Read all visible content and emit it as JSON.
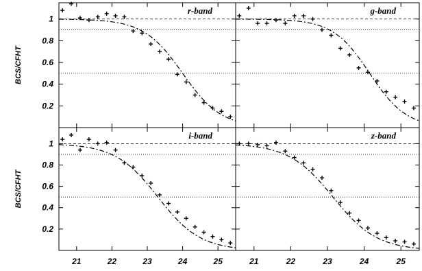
{
  "chart_data": [
    {
      "type": "scatter",
      "title": "r-band",
      "ylabel": "BCS/CFHT",
      "xlim": [
        20.5,
        25.5
      ],
      "ylim": [
        0,
        1.15
      ],
      "xticks": [
        "21",
        "22",
        "23",
        "24",
        "25"
      ],
      "yticks": [
        "0.2",
        "0.4",
        "0.6",
        "0.8",
        "1"
      ],
      "reference_lines": [
        1.0,
        0.9,
        0.5
      ],
      "model_curve": {
        "style": "dash-dot",
        "m50": 24.0,
        "width": 0.55
      },
      "points": [
        [
          20.6,
          1.08
        ],
        [
          20.85,
          1.14
        ],
        [
          21.1,
          1.01
        ],
        [
          21.35,
          0.99
        ],
        [
          21.6,
          1.02
        ],
        [
          21.85,
          1.05
        ],
        [
          22.1,
          1.03
        ],
        [
          22.35,
          1.02
        ],
        [
          22.6,
          0.89
        ],
        [
          22.85,
          0.87
        ],
        [
          23.1,
          0.77
        ],
        [
          23.35,
          0.7
        ],
        [
          23.6,
          0.63
        ],
        [
          23.85,
          0.49
        ],
        [
          24.1,
          0.42
        ],
        [
          24.35,
          0.3
        ],
        [
          24.6,
          0.23
        ],
        [
          24.85,
          0.18
        ],
        [
          25.1,
          0.15
        ],
        [
          25.35,
          0.1
        ]
      ]
    },
    {
      "type": "scatter",
      "title": "g-band",
      "ylabel": "",
      "xlim": [
        20.5,
        25.5
      ],
      "ylim": [
        0,
        1.15
      ],
      "xticks": [
        "21",
        "22",
        "23",
        "24",
        "25"
      ],
      "yticks": [
        "0.2",
        "0.4",
        "0.6",
        "0.8",
        "1"
      ],
      "reference_lines": [
        1.0,
        0.9,
        0.5
      ],
      "model_curve": {
        "style": "dash-dot",
        "m50": 24.15,
        "width": 0.5
      },
      "points": [
        [
          20.6,
          1.03
        ],
        [
          20.85,
          1.1
        ],
        [
          21.1,
          0.96
        ],
        [
          21.35,
          0.96
        ],
        [
          21.6,
          0.99
        ],
        [
          21.85,
          0.96
        ],
        [
          22.1,
          1.03
        ],
        [
          22.35,
          1.03
        ],
        [
          22.6,
          1.0
        ],
        [
          22.85,
          0.9
        ],
        [
          23.1,
          0.85
        ],
        [
          23.35,
          0.73
        ],
        [
          23.6,
          0.67
        ],
        [
          23.85,
          0.55
        ],
        [
          24.1,
          0.51
        ],
        [
          24.35,
          0.43
        ],
        [
          24.6,
          0.33
        ],
        [
          24.85,
          0.28
        ],
        [
          25.1,
          0.24
        ],
        [
          25.35,
          0.18
        ]
      ]
    },
    {
      "type": "scatter",
      "title": "i-band",
      "ylabel": "BCS/CFHT",
      "xlim": [
        20.5,
        25.5
      ],
      "ylim": [
        0,
        1.15
      ],
      "xticks": [
        "21",
        "22",
        "23",
        "24",
        "25"
      ],
      "yticks": [
        "0.2",
        "0.4",
        "0.6",
        "0.8",
        "1"
      ],
      "reference_lines": [
        1.0,
        0.9,
        0.5
      ],
      "model_curve": {
        "style": "dash-dot",
        "m50": 23.3,
        "width": 0.6
      },
      "points": [
        [
          20.6,
          1.04
        ],
        [
          20.85,
          1.08
        ],
        [
          21.1,
          0.94
        ],
        [
          21.35,
          1.04
        ],
        [
          21.6,
          1.0
        ],
        [
          21.85,
          1.01
        ],
        [
          22.1,
          0.94
        ],
        [
          22.35,
          0.82
        ],
        [
          22.6,
          0.78
        ],
        [
          22.85,
          0.7
        ],
        [
          23.1,
          0.63
        ],
        [
          23.35,
          0.52
        ],
        [
          23.6,
          0.44
        ],
        [
          23.85,
          0.36
        ],
        [
          24.1,
          0.3
        ],
        [
          24.35,
          0.22
        ],
        [
          24.6,
          0.17
        ],
        [
          24.85,
          0.13
        ],
        [
          25.1,
          0.1
        ],
        [
          25.35,
          0.07
        ]
      ]
    },
    {
      "type": "scatter",
      "title": "z-band",
      "ylabel": "",
      "xlim": [
        20.5,
        25.5
      ],
      "ylim": [
        0,
        1.15
      ],
      "xticks": [
        "21",
        "22",
        "23",
        "24",
        "25"
      ],
      "yticks": [
        "0.2",
        "0.4",
        "0.6",
        "0.8",
        "1"
      ],
      "reference_lines": [
        1.0,
        0.9,
        0.5
      ],
      "model_curve": {
        "style": "dash-dot",
        "m50": 23.15,
        "width": 0.6
      },
      "points": [
        [
          20.6,
          1.0
        ],
        [
          20.85,
          1.0
        ],
        [
          21.1,
          0.99
        ],
        [
          21.35,
          0.98
        ],
        [
          21.6,
          1.01
        ],
        [
          21.85,
          0.93
        ],
        [
          22.1,
          0.87
        ],
        [
          22.35,
          0.82
        ],
        [
          22.6,
          0.76
        ],
        [
          22.85,
          0.68
        ],
        [
          23.1,
          0.56
        ],
        [
          23.35,
          0.45
        ],
        [
          23.6,
          0.35
        ],
        [
          23.85,
          0.28
        ],
        [
          24.1,
          0.21
        ],
        [
          24.35,
          0.16
        ],
        [
          24.6,
          0.12
        ],
        [
          24.85,
          0.09
        ],
        [
          25.1,
          0.08
        ],
        [
          25.35,
          0.06
        ]
      ]
    }
  ]
}
